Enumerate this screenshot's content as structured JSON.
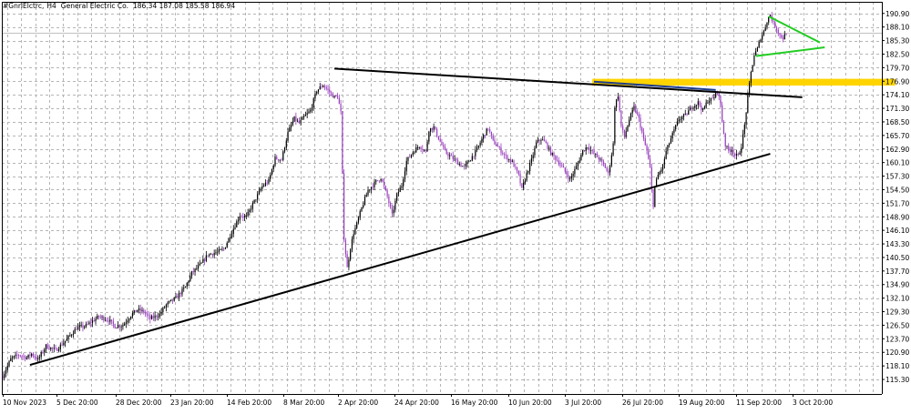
{
  "header": {
    "symbol": "#GnrlElctrc",
    "timeframe": "H4",
    "name": "General Electric Co.",
    "ohlc": "186.34 187.08 185.58 186.94"
  },
  "chart_data": {
    "type": "candlestick",
    "ylim": [
      112.3,
      193.3
    ],
    "y_ticks": [
      "190.90",
      "188.10",
      "185.30",
      "182.50",
      "179.70",
      "176.90",
      "174.10",
      "171.30",
      "168.50",
      "165.70",
      "162.90",
      "160.10",
      "157.30",
      "154.50",
      "151.70",
      "148.90",
      "146.10",
      "143.30",
      "140.50",
      "137.70",
      "134.90",
      "132.10",
      "129.30",
      "126.50",
      "123.70",
      "120.90",
      "118.10",
      "115.30"
    ],
    "x_ticks": [
      "10 Nov 2023",
      "5 Dec 20:00",
      "28 Dec 20:00",
      "23 Jan 20:00",
      "14 Feb 20:00",
      "8 Mar 20:00",
      "2 Apr 20:00",
      "24 Apr 20:00",
      "16 May 20:00",
      "10 Jun 20:00",
      "3 Jul 20:00",
      "26 Jul 20:00",
      "19 Aug 20:00",
      "11 Sep 20:00",
      "3 Oct 20:00"
    ],
    "price_path": [
      [
        0,
        116.0
      ],
      [
        5,
        119.5
      ],
      [
        10,
        120.4
      ],
      [
        15,
        119.8
      ],
      [
        18,
        120.6
      ],
      [
        22,
        119.4
      ],
      [
        27,
        122.2
      ],
      [
        33,
        121.3
      ],
      [
        40,
        123.6
      ],
      [
        46,
        125.9
      ],
      [
        52,
        126.4
      ],
      [
        60,
        128.3
      ],
      [
        66,
        127.6
      ],
      [
        70,
        126.3
      ],
      [
        75,
        126.5
      ],
      [
        80,
        128.6
      ],
      [
        84,
        129.7
      ],
      [
        88,
        129.3
      ],
      [
        92,
        127.8
      ],
      [
        98,
        128.8
      ],
      [
        102,
        130.7
      ],
      [
        108,
        132.1
      ],
      [
        114,
        134.4
      ],
      [
        118,
        137.3
      ],
      [
        124,
        139.2
      ],
      [
        128,
        141.1
      ],
      [
        134,
        141.6
      ],
      [
        138,
        142.2
      ],
      [
        142,
        145.1
      ],
      [
        148,
        149.2
      ],
      [
        152,
        148.8
      ],
      [
        156,
        151.5
      ],
      [
        162,
        155.2
      ],
      [
        166,
        156.3
      ],
      [
        170,
        161.0
      ],
      [
        174,
        160.7
      ],
      [
        178,
        166.3
      ],
      [
        182,
        169.2
      ],
      [
        185,
        168.2
      ],
      [
        188,
        169.5
      ],
      [
        192,
        170.8
      ],
      [
        196,
        175.0
      ],
      [
        200,
        176.1
      ],
      [
        204,
        174.6
      ],
      [
        207,
        173.6
      ],
      [
        209,
        173.8
      ],
      [
        211,
        170.4
      ],
      [
        213,
        144.5
      ],
      [
        215,
        138.3
      ],
      [
        217,
        142.5
      ],
      [
        219,
        145.6
      ],
      [
        221,
        147.4
      ],
      [
        224,
        150.7
      ],
      [
        228,
        154.4
      ],
      [
        232,
        155.8
      ],
      [
        236,
        157.0
      ],
      [
        240,
        153.1
      ],
      [
        243,
        149.2
      ],
      [
        246,
        153.4
      ],
      [
        249,
        155.4
      ],
      [
        252,
        160.4
      ],
      [
        256,
        162.3
      ],
      [
        260,
        163.6
      ],
      [
        264,
        162.3
      ],
      [
        266,
        166.9
      ],
      [
        269,
        167.4
      ],
      [
        272,
        165.1
      ],
      [
        276,
        162.3
      ],
      [
        280,
        161.2
      ],
      [
        284,
        160.1
      ],
      [
        288,
        159.1
      ],
      [
        292,
        160.9
      ],
      [
        296,
        162.8
      ],
      [
        300,
        165.6
      ],
      [
        303,
        167.2
      ],
      [
        306,
        164.5
      ],
      [
        310,
        162.9
      ],
      [
        314,
        161.3
      ],
      [
        318,
        160.2
      ],
      [
        322,
        157.4
      ],
      [
        324,
        154.5
      ],
      [
        327,
        157.8
      ],
      [
        330,
        160.6
      ],
      [
        333,
        164.1
      ],
      [
        336,
        165.0
      ],
      [
        339,
        164.0
      ],
      [
        342,
        162.1
      ],
      [
        346,
        160.6
      ],
      [
        350,
        158.7
      ],
      [
        354,
        156.6
      ],
      [
        358,
        159.2
      ],
      [
        362,
        162.5
      ],
      [
        365,
        163.5
      ],
      [
        368,
        162.2
      ],
      [
        372,
        161.0
      ],
      [
        376,
        159.1
      ],
      [
        378,
        157.8
      ],
      [
        381,
        163.9
      ],
      [
        382,
        171.8
      ],
      [
        384,
        174.0
      ],
      [
        386,
        167.6
      ],
      [
        388,
        165.4
      ],
      [
        391,
        169.0
      ],
      [
        394,
        171.5
      ],
      [
        397,
        169.1
      ],
      [
        400,
        164.8
      ],
      [
        402,
        162.5
      ],
      [
        404,
        158.9
      ],
      [
        405,
        154.3
      ],
      [
        406,
        151.4
      ],
      [
        407,
        155.1
      ],
      [
        409,
        157.5
      ],
      [
        412,
        159.4
      ],
      [
        414,
        162.4
      ],
      [
        418,
        165.9
      ],
      [
        422,
        169.1
      ],
      [
        426,
        169.8
      ],
      [
        430,
        171.6
      ],
      [
        434,
        172.5
      ],
      [
        437,
        170.8
      ],
      [
        440,
        172.9
      ],
      [
        443,
        173.2
      ],
      [
        446,
        175.0
      ],
      [
        448,
        172.0
      ],
      [
        449,
        168.7
      ],
      [
        451,
        163.7
      ],
      [
        453,
        162.5
      ],
      [
        455,
        162.9
      ],
      [
        457,
        161.6
      ],
      [
        459,
        161.4
      ],
      [
        461,
        163.6
      ],
      [
        463,
        167.8
      ],
      [
        465,
        173.6
      ],
      [
        467,
        178.7
      ],
      [
        469,
        182.3
      ],
      [
        471,
        183.6
      ],
      [
        473,
        185.9
      ],
      [
        475,
        187.2
      ],
      [
        477,
        189.4
      ],
      [
        479,
        190.6
      ],
      [
        481,
        188.8
      ],
      [
        483,
        187.8
      ],
      [
        485,
        186.4
      ],
      [
        487,
        185.8
      ],
      [
        489,
        186.9
      ]
    ],
    "trendlines": [
      {
        "color": "#000000",
        "from": [
          17,
          118.3
        ],
        "to": [
          479,
          161.9
        ]
      },
      {
        "color": "#000000",
        "from": [
          207,
          179.5
        ],
        "to": [
          499,
          173.6
        ]
      },
      {
        "color": "#1e3c8c",
        "from": [
          369,
          176.8
        ],
        "to": [
          445,
          175.1
        ]
      },
      {
        "color": "#22cc22",
        "from": [
          478,
          190.3
        ],
        "to": [
          510,
          184.9
        ]
      },
      {
        "color": "#22cc22",
        "from": [
          470,
          182.1
        ],
        "to": [
          513,
          183.9
        ]
      }
    ],
    "zone": {
      "color": "#ffd400",
      "x_from": 368,
      "x_to": 557,
      "y_top": 177.4,
      "y_bottom": 176.0
    },
    "current_price": 186.94,
    "colors": {
      "bull": "#000000",
      "bear": "#9a3fbf",
      "current_price_line": "#c0c0c0"
    }
  }
}
